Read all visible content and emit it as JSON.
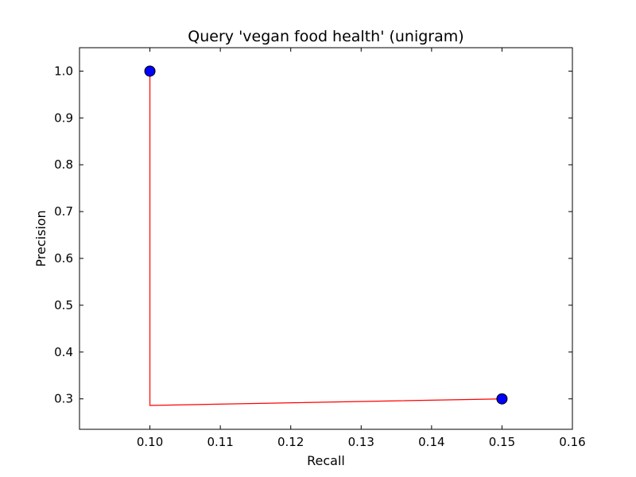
{
  "chart_data": {
    "type": "line",
    "title": "Query 'vegan food health' (unigram)",
    "xlabel": "Recall",
    "ylabel": "Precision",
    "xlim": [
      0.09,
      0.16
    ],
    "ylim": [
      0.235,
      1.05
    ],
    "x_ticks": [
      0.1,
      0.11,
      0.12,
      0.13,
      0.14,
      0.15,
      0.16
    ],
    "x_tick_labels": [
      "0.10",
      "0.11",
      "0.12",
      "0.13",
      "0.14",
      "0.15",
      "0.16"
    ],
    "y_ticks": [
      0.3,
      0.4,
      0.5,
      0.6,
      0.7,
      0.8,
      0.9,
      1.0
    ],
    "y_tick_labels": [
      "0.3",
      "0.4",
      "0.5",
      "0.6",
      "0.7",
      "0.8",
      "0.9",
      "1.0"
    ],
    "grid": false,
    "series": [
      {
        "kind": "line",
        "color": "#ff0000",
        "points": [
          {
            "x": 0.1,
            "y": 1.0
          },
          {
            "x": 0.1,
            "y": 0.286
          },
          {
            "x": 0.15,
            "y": 0.3
          }
        ]
      },
      {
        "kind": "markers",
        "color": "#0000ff",
        "points": [
          {
            "x": 0.1,
            "y": 1.0
          },
          {
            "x": 0.15,
            "y": 0.3
          }
        ]
      }
    ]
  }
}
